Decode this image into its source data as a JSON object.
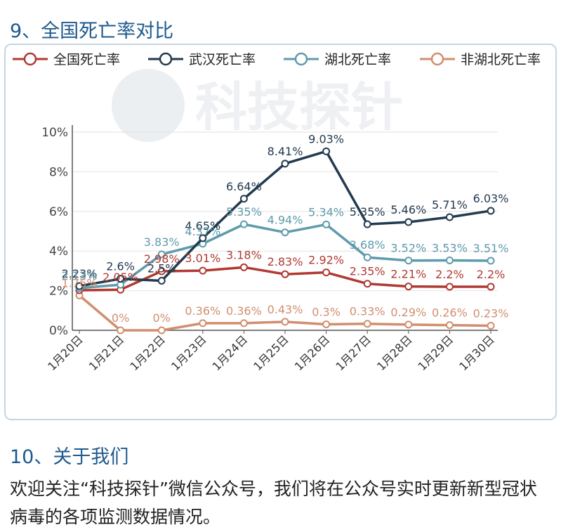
{
  "section_title": "9、全国死亡率对比",
  "about": {
    "title": "10、关于我们",
    "text": "欢迎关注“科技探针”微信公众号，我们将在公众号实时更新新型冠状病毒的各项监测数据情况。"
  },
  "watermark": "科技探针",
  "chart_data": {
    "type": "line",
    "title": "",
    "xlabel": "",
    "ylabel": "",
    "ylim": [
      0,
      10
    ],
    "y_ticks": [
      "0%",
      "2%",
      "4%",
      "6%",
      "8%",
      "10%"
    ],
    "grid": true,
    "legend_position": "top",
    "categories": [
      "1月20日",
      "1月21日",
      "1月22日",
      "1月23日",
      "1月24日",
      "1月25日",
      "1月26日",
      "1月27日",
      "1月28日",
      "1月29日",
      "1月30日"
    ],
    "series": [
      {
        "name": "全国死亡率",
        "color": "#b03a32",
        "values": [
          2.02,
          2.05,
          2.98,
          3.01,
          3.18,
          2.83,
          2.92,
          2.35,
          2.21,
          2.2,
          2.2
        ],
        "labels": [
          "",
          "2.05%",
          "2.98%",
          "3.01%",
          "3.18%",
          "2.83%",
          "2.92%",
          "2.35%",
          "2.21%",
          "2.2%",
          "2.2%"
        ]
      },
      {
        "name": "武汉死亡率",
        "color": "#233a4f",
        "values": [
          2.23,
          2.6,
          2.5,
          4.65,
          6.64,
          8.41,
          9.03,
          5.35,
          5.46,
          5.71,
          6.03
        ],
        "labels": [
          "2.23%",
          "2.6%",
          "2.5%",
          "4.65%",
          "6.64%",
          "8.41%",
          "9.03%",
          "5.35%",
          "5.46%",
          "5.71%",
          "6.03%"
        ]
      },
      {
        "name": "湖北死亡率",
        "color": "#5e9bac",
        "values": [
          2.13,
          2.3,
          3.83,
          4.37,
          5.35,
          4.94,
          5.34,
          3.68,
          3.52,
          3.53,
          3.51
        ],
        "labels": [
          "2.13%",
          "",
          "3.83%",
          "4.37%",
          "5.35%",
          "4.94%",
          "5.34%",
          "3.68%",
          "3.52%",
          "3.53%",
          "3.51%"
        ]
      },
      {
        "name": "非湖北死亡率",
        "color": "#d28e6e",
        "values": [
          1.76,
          0,
          0,
          0.36,
          0.36,
          0.43,
          0.3,
          0.33,
          0.29,
          0.26,
          0.23
        ],
        "labels": [
          "1.76%",
          "0%",
          "0%",
          "0.36%",
          "0.36%",
          "0.43%",
          "0.3%",
          "0.33%",
          "0.29%",
          "0.26%",
          "0.23%"
        ]
      }
    ]
  }
}
